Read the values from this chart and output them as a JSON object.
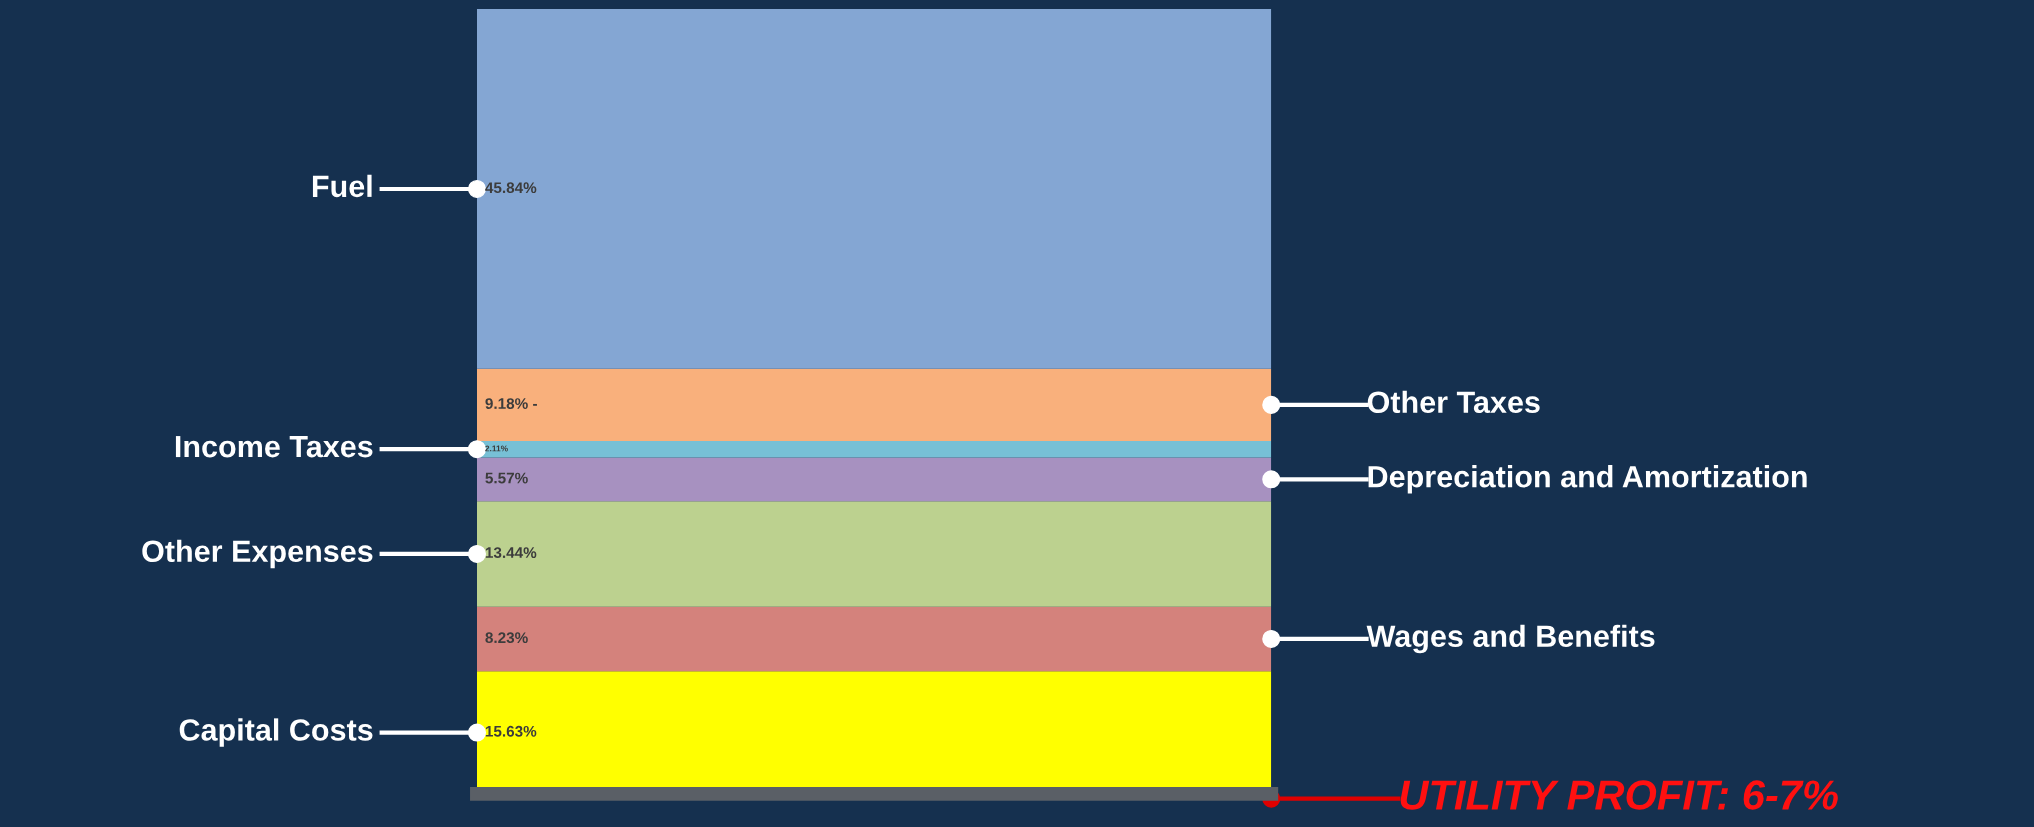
{
  "chart_data": {
    "type": "bar",
    "stacked": true,
    "categories": [
      null
    ],
    "series": [
      {
        "name": "Capital Costs",
        "color": "#ffff00",
        "values": [
          15.63
        ],
        "value_labels": [
          "15.63%"
        ]
      },
      {
        "name": "Wages and Benefits",
        "color": "#d4827c",
        "values": [
          8.23
        ],
        "value_labels": [
          "8.23%"
        ]
      },
      {
        "name": "Other Expenses",
        "color": "#bcd18f",
        "values": [
          13.44
        ],
        "value_labels": [
          "13.44%"
        ]
      },
      {
        "name": "Depreciation and Amortization",
        "color": "#a791c0",
        "values": [
          5.57
        ],
        "value_labels": [
          "5.57%"
        ]
      },
      {
        "name": "Income Taxes",
        "color": "#77c0d6",
        "values": [
          2.11
        ],
        "value_labels": [
          "2.11%"
        ]
      },
      {
        "name": "Other Taxes",
        "color": "#f9b07c",
        "values": [
          9.18
        ],
        "value_labels": [
          "9.18% -"
        ]
      },
      {
        "name": "Fuel",
        "color": "#84a6d3",
        "values": [
          45.84
        ],
        "value_labels": [
          "45.84%"
        ]
      }
    ],
    "annotations": [
      "UTILITY PROFIT: 6-7%"
    ],
    "legend": false
  }
}
